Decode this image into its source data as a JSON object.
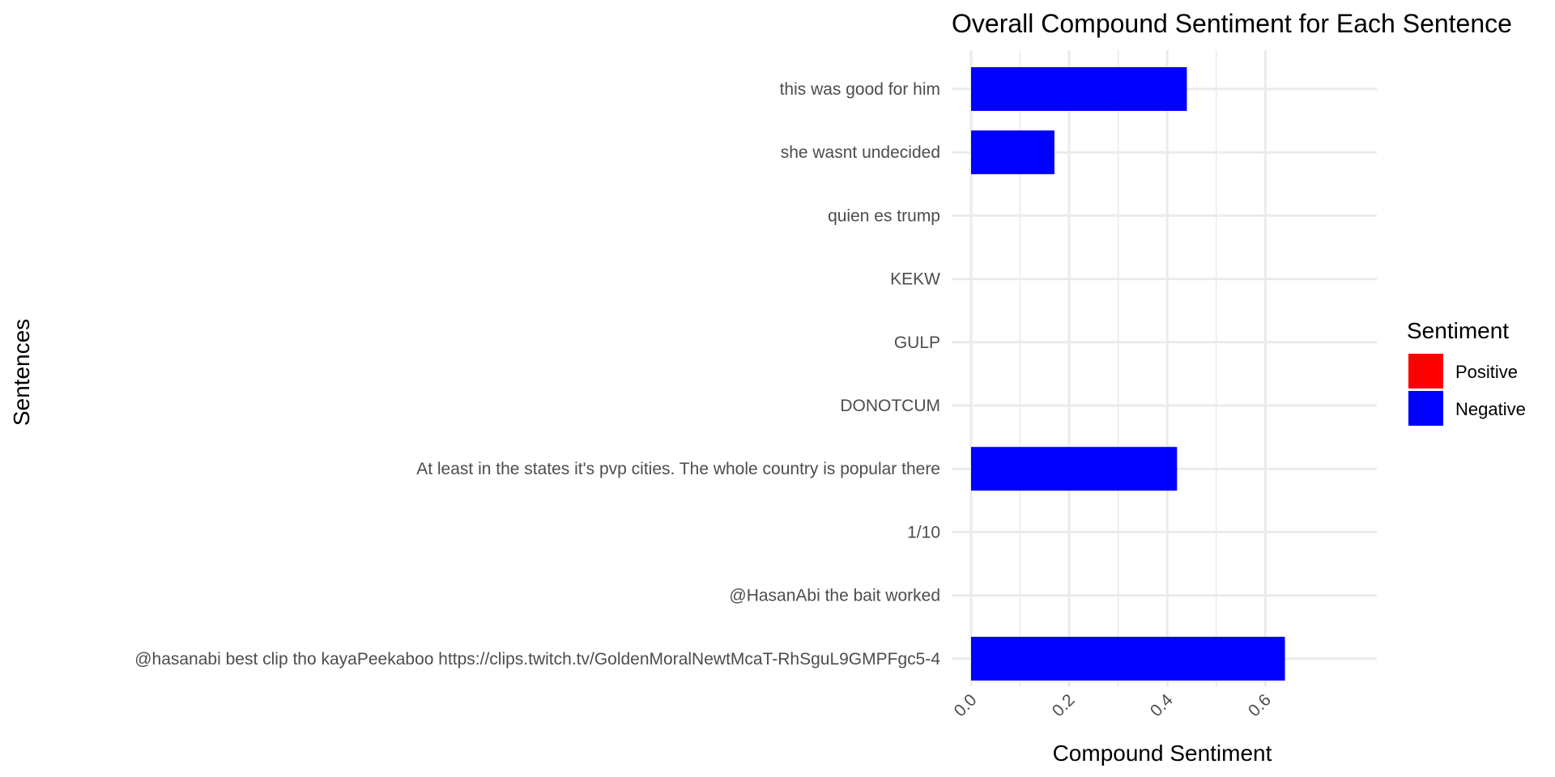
{
  "chart_data": {
    "type": "bar",
    "orientation": "horizontal",
    "title": "Overall Compound Sentiment for Each Sentence",
    "xlabel": "Compound Sentiment",
    "ylabel": "Sentences",
    "xlim": [
      0,
      0.65
    ],
    "xticks": [
      "0.0",
      "0.2",
      "0.4",
      "0.6"
    ],
    "grid": true,
    "legend": {
      "title": "Sentiment",
      "placement": "right",
      "entries": [
        {
          "label": "Positive",
          "color": "#ff0000"
        },
        {
          "label": "Negative",
          "color": "#0000ff"
        }
      ]
    },
    "categories": [
      "this was good for him",
      "she wasnt undecided",
      "quien es trump",
      "KEKW",
      "GULP",
      "DONOTCUM",
      "At least in the states it's pvp cities. The whole country is popular there",
      "1/10",
      "@HasanAbi the bait worked",
      "@hasanabi best clip tho kayaPeekaboo https://clips.twitch.tv/GoldenMoralNewtMcaT-RhSguL9GMPFgc5-4"
    ],
    "values": [
      0.44,
      0.17,
      0,
      0,
      0,
      0,
      0.42,
      0,
      0,
      0.64
    ],
    "bar_color": "#0000ff"
  }
}
